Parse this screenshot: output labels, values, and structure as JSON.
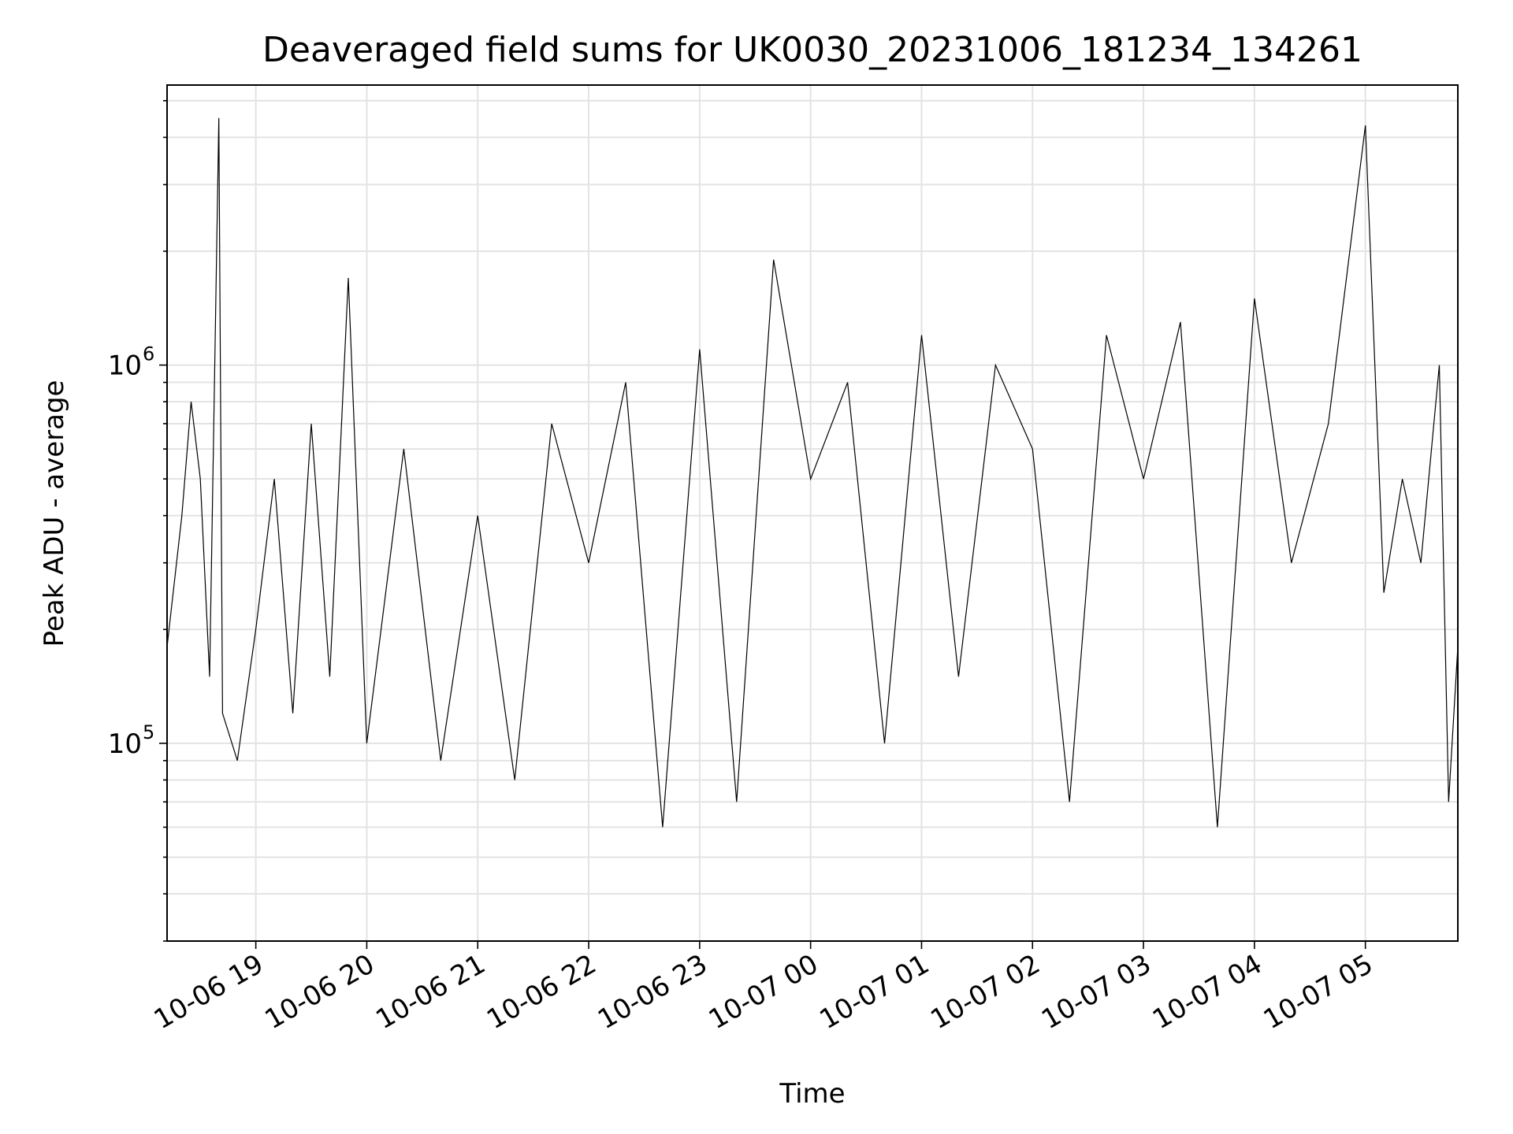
{
  "chart_data": {
    "type": "line",
    "title": "Deaveraged field sums for UK0030_20231006_181234_134261",
    "xlabel": "Time",
    "ylabel": "Peak ADU - average",
    "x_range": [
      "2023-10-06 18:12",
      "2023-10-07 05:50"
    ],
    "y_scale": "log",
    "ylim": [
      30000,
      5500000
    ],
    "grid": true,
    "x_ticks": [
      {
        "t": "2023-10-06 19:00",
        "label": "10-06 19"
      },
      {
        "t": "2023-10-06 20:00",
        "label": "10-06 20"
      },
      {
        "t": "2023-10-06 21:00",
        "label": "10-06 21"
      },
      {
        "t": "2023-10-06 22:00",
        "label": "10-06 22"
      },
      {
        "t": "2023-10-06 23:00",
        "label": "10-06 23"
      },
      {
        "t": "2023-10-07 00:00",
        "label": "10-07 00"
      },
      {
        "t": "2023-10-07 01:00",
        "label": "10-07 01"
      },
      {
        "t": "2023-10-07 02:00",
        "label": "10-07 02"
      },
      {
        "t": "2023-10-07 03:00",
        "label": "10-07 03"
      },
      {
        "t": "2023-10-07 04:00",
        "label": "10-07 04"
      },
      {
        "t": "2023-10-07 05:00",
        "label": "10-07 05"
      }
    ],
    "y_ticks": [
      {
        "value": 100000,
        "base": "10",
        "exp": "5"
      },
      {
        "value": 1000000,
        "base": "10",
        "exp": "6"
      }
    ],
    "series": [
      {
        "color": "#000000",
        "points": [
          [
            "2023-10-06 18:12",
            180000
          ],
          [
            "2023-10-06 18:20",
            400000
          ],
          [
            "2023-10-06 18:25",
            800000
          ],
          [
            "2023-10-06 18:30",
            500000
          ],
          [
            "2023-10-06 18:35",
            150000
          ],
          [
            "2023-10-06 18:40",
            4500000
          ],
          [
            "2023-10-06 18:42",
            120000
          ],
          [
            "2023-10-06 18:50",
            90000
          ],
          [
            "2023-10-06 19:00",
            200000
          ],
          [
            "2023-10-06 19:10",
            500000
          ],
          [
            "2023-10-06 19:20",
            120000
          ],
          [
            "2023-10-06 19:30",
            700000
          ],
          [
            "2023-10-06 19:40",
            150000
          ],
          [
            "2023-10-06 19:50",
            1700000
          ],
          [
            "2023-10-06 20:00",
            100000
          ],
          [
            "2023-10-06 20:20",
            600000
          ],
          [
            "2023-10-06 20:40",
            90000
          ],
          [
            "2023-10-06 21:00",
            400000
          ],
          [
            "2023-10-06 21:20",
            80000
          ],
          [
            "2023-10-06 21:40",
            700000
          ],
          [
            "2023-10-06 22:00",
            300000
          ],
          [
            "2023-10-06 22:20",
            900000
          ],
          [
            "2023-10-06 22:40",
            60000
          ],
          [
            "2023-10-06 23:00",
            1100000
          ],
          [
            "2023-10-06 23:20",
            70000
          ],
          [
            "2023-10-06 23:40",
            1900000
          ],
          [
            "2023-10-07 00:00",
            500000
          ],
          [
            "2023-10-07 00:20",
            900000
          ],
          [
            "2023-10-07 00:40",
            100000
          ],
          [
            "2023-10-07 01:00",
            1200000
          ],
          [
            "2023-10-07 01:20",
            150000
          ],
          [
            "2023-10-07 01:40",
            1000000
          ],
          [
            "2023-10-07 02:00",
            600000
          ],
          [
            "2023-10-07 02:20",
            70000
          ],
          [
            "2023-10-07 02:40",
            1200000
          ],
          [
            "2023-10-07 03:00",
            500000
          ],
          [
            "2023-10-07 03:20",
            1300000
          ],
          [
            "2023-10-07 03:40",
            60000
          ],
          [
            "2023-10-07 04:00",
            1500000
          ],
          [
            "2023-10-07 04:20",
            300000
          ],
          [
            "2023-10-07 04:40",
            700000
          ],
          [
            "2023-10-07 05:00",
            4300000
          ],
          [
            "2023-10-07 05:10",
            250000
          ],
          [
            "2023-10-07 05:20",
            500000
          ],
          [
            "2023-10-07 05:30",
            300000
          ],
          [
            "2023-10-07 05:40",
            1000000
          ],
          [
            "2023-10-07 05:45",
            70000
          ],
          [
            "2023-10-07 05:50",
            180000
          ]
        ]
      }
    ]
  }
}
